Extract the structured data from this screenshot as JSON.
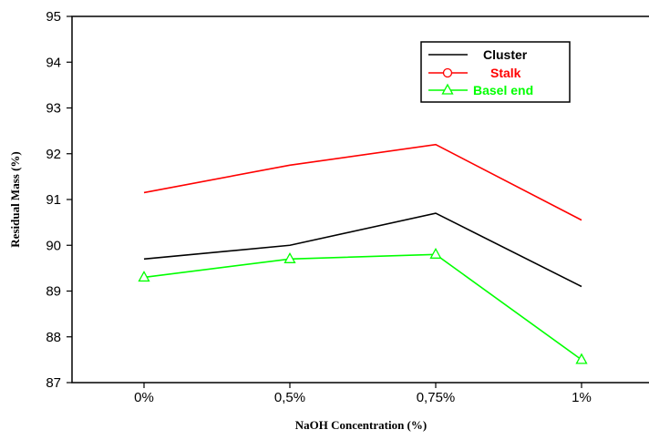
{
  "chart_data": {
    "type": "line",
    "title": "",
    "xlabel": "NaOH Concentration (%)",
    "ylabel": "Residual Mass (%)",
    "categories": [
      "0%",
      "0,5%",
      "0,75%",
      "1%"
    ],
    "ylim": [
      87,
      95
    ],
    "yticks": [
      87,
      88,
      89,
      90,
      91,
      92,
      93,
      94,
      95
    ],
    "grid": false,
    "legend_position": "top-right",
    "series": [
      {
        "name": "Cluster",
        "values": [
          89.7,
          90.0,
          90.7,
          89.1
        ],
        "color": "#000000",
        "marker": "none"
      },
      {
        "name": "Stalk",
        "values": [
          91.15,
          91.75,
          92.2,
          90.55
        ],
        "color": "#ff0000",
        "marker": "circle"
      },
      {
        "name": "Basel end",
        "values": [
          89.3,
          89.7,
          89.8,
          87.5
        ],
        "color": "#00ff00",
        "marker": "triangle"
      }
    ]
  }
}
